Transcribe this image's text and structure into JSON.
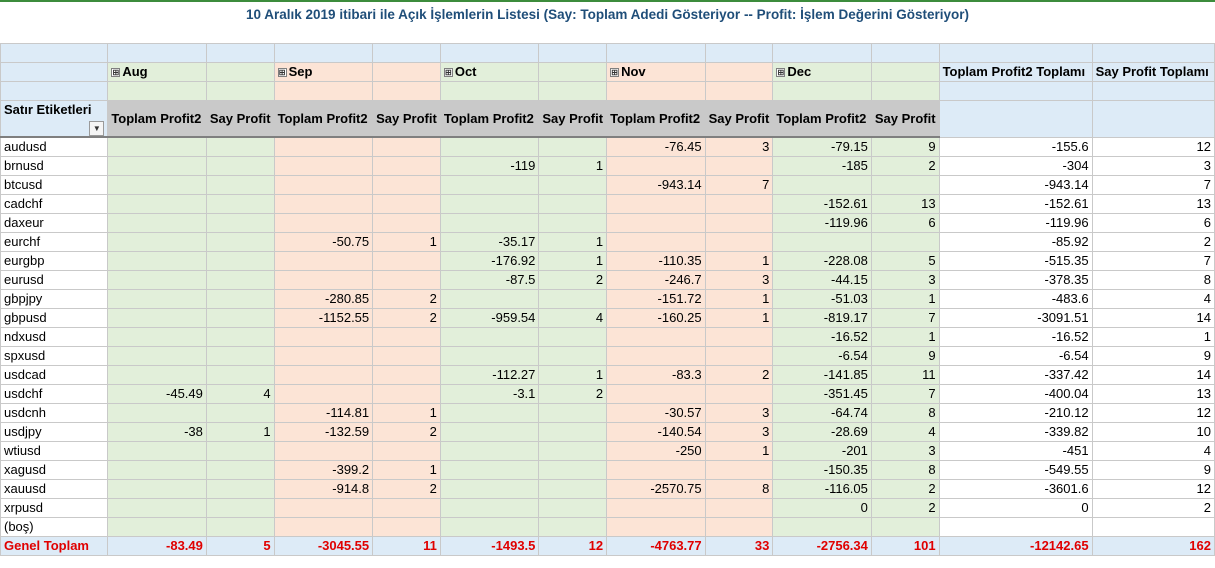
{
  "title": "10 Aralık 2019 itibari ile Açık İşlemlerin Listesi (Say: Toplam Adedi Gösteriyor -- Profit: İşlem Değerini Gösteriyor)",
  "expand_icon": "⊞",
  "dropdown_icon": "▼",
  "row_label_header": "Satır Etiketleri",
  "months": [
    {
      "name": "Aug",
      "color": "green"
    },
    {
      "name": "Sep",
      "color": "peach"
    },
    {
      "name": "Oct",
      "color": "green"
    },
    {
      "name": "Nov",
      "color": "peach"
    },
    {
      "name": "Dec",
      "color": "green"
    }
  ],
  "sub_headers": {
    "profit": "Toplam Profit2",
    "say": "Say Profit"
  },
  "grand_headers": {
    "profit": "Toplam Profit2 Toplamı",
    "say": "Say Profit Toplamı"
  },
  "rows": [
    {
      "label": "audusd",
      "cells": [
        "",
        "",
        "",
        "",
        "",
        "",
        "-76.45",
        "3",
        "-79.15",
        "9"
      ],
      "tp": "-155.6",
      "ts": "12"
    },
    {
      "label": "brnusd",
      "cells": [
        "",
        "",
        "",
        "",
        "-119",
        "1",
        "",
        "",
        "-185",
        "2"
      ],
      "tp": "-304",
      "ts": "3"
    },
    {
      "label": "btcusd",
      "cells": [
        "",
        "",
        "",
        "",
        "",
        "",
        "-943.14",
        "7",
        "",
        ""
      ],
      "tp": "-943.14",
      "ts": "7"
    },
    {
      "label": "cadchf",
      "cells": [
        "",
        "",
        "",
        "",
        "",
        "",
        "",
        "",
        "-152.61",
        "13"
      ],
      "tp": "-152.61",
      "ts": "13"
    },
    {
      "label": "daxeur",
      "cells": [
        "",
        "",
        "",
        "",
        "",
        "",
        "",
        "",
        "-119.96",
        "6"
      ],
      "tp": "-119.96",
      "ts": "6"
    },
    {
      "label": "eurchf",
      "cells": [
        "",
        "",
        "-50.75",
        "1",
        "-35.17",
        "1",
        "",
        "",
        "",
        ""
      ],
      "tp": "-85.92",
      "ts": "2"
    },
    {
      "label": "eurgbp",
      "cells": [
        "",
        "",
        "",
        "",
        "-176.92",
        "1",
        "-110.35",
        "1",
        "-228.08",
        "5"
      ],
      "tp": "-515.35",
      "ts": "7"
    },
    {
      "label": "eurusd",
      "cells": [
        "",
        "",
        "",
        "",
        "-87.5",
        "2",
        "-246.7",
        "3",
        "-44.15",
        "3"
      ],
      "tp": "-378.35",
      "ts": "8"
    },
    {
      "label": "gbpjpy",
      "cells": [
        "",
        "",
        "-280.85",
        "2",
        "",
        "",
        "-151.72",
        "1",
        "-51.03",
        "1"
      ],
      "tp": "-483.6",
      "ts": "4"
    },
    {
      "label": "gbpusd",
      "cells": [
        "",
        "",
        "-1152.55",
        "2",
        "-959.54",
        "4",
        "-160.25",
        "1",
        "-819.17",
        "7"
      ],
      "tp": "-3091.51",
      "ts": "14"
    },
    {
      "label": "ndxusd",
      "cells": [
        "",
        "",
        "",
        "",
        "",
        "",
        "",
        "",
        "-16.52",
        "1"
      ],
      "tp": "-16.52",
      "ts": "1"
    },
    {
      "label": "spxusd",
      "cells": [
        "",
        "",
        "",
        "",
        "",
        "",
        "",
        "",
        "-6.54",
        "9"
      ],
      "tp": "-6.54",
      "ts": "9"
    },
    {
      "label": "usdcad",
      "cells": [
        "",
        "",
        "",
        "",
        "-112.27",
        "1",
        "-83.3",
        "2",
        "-141.85",
        "11"
      ],
      "tp": "-337.42",
      "ts": "14"
    },
    {
      "label": "usdchf",
      "cells": [
        "-45.49",
        "4",
        "",
        "",
        "-3.1",
        "2",
        "",
        "",
        "-351.45",
        "7"
      ],
      "tp": "-400.04",
      "ts": "13"
    },
    {
      "label": "usdcnh",
      "cells": [
        "",
        "",
        "-114.81",
        "1",
        "",
        "",
        "-30.57",
        "3",
        "-64.74",
        "8"
      ],
      "tp": "-210.12",
      "ts": "12"
    },
    {
      "label": "usdjpy",
      "cells": [
        "-38",
        "1",
        "-132.59",
        "2",
        "",
        "",
        "-140.54",
        "3",
        "-28.69",
        "4"
      ],
      "tp": "-339.82",
      "ts": "10"
    },
    {
      "label": "wtiusd",
      "cells": [
        "",
        "",
        "",
        "",
        "",
        "",
        "-250",
        "1",
        "-201",
        "3"
      ],
      "tp": "-451",
      "ts": "4"
    },
    {
      "label": "xagusd",
      "cells": [
        "",
        "",
        "-399.2",
        "1",
        "",
        "",
        "",
        "",
        "-150.35",
        "8"
      ],
      "tp": "-549.55",
      "ts": "9"
    },
    {
      "label": "xauusd",
      "cells": [
        "",
        "",
        "-914.8",
        "2",
        "",
        "",
        "-2570.75",
        "8",
        "-116.05",
        "2"
      ],
      "tp": "-3601.6",
      "ts": "12"
    },
    {
      "label": "xrpusd",
      "cells": [
        "",
        "",
        "",
        "",
        "",
        "",
        "",
        "",
        "0",
        "2"
      ],
      "tp": "0",
      "ts": "2"
    },
    {
      "label": "(boş)",
      "cells": [
        "",
        "",
        "",
        "",
        "",
        "",
        "",
        "",
        "",
        ""
      ],
      "tp": "",
      "ts": ""
    }
  ],
  "grand_total": {
    "label": "Genel Toplam",
    "cells": [
      "-83.49",
      "5",
      "-3045.55",
      "11",
      "-1493.5",
      "12",
      "-4763.77",
      "33",
      "-2756.34",
      "101"
    ],
    "tp": "-12142.65",
    "ts": "162"
  }
}
